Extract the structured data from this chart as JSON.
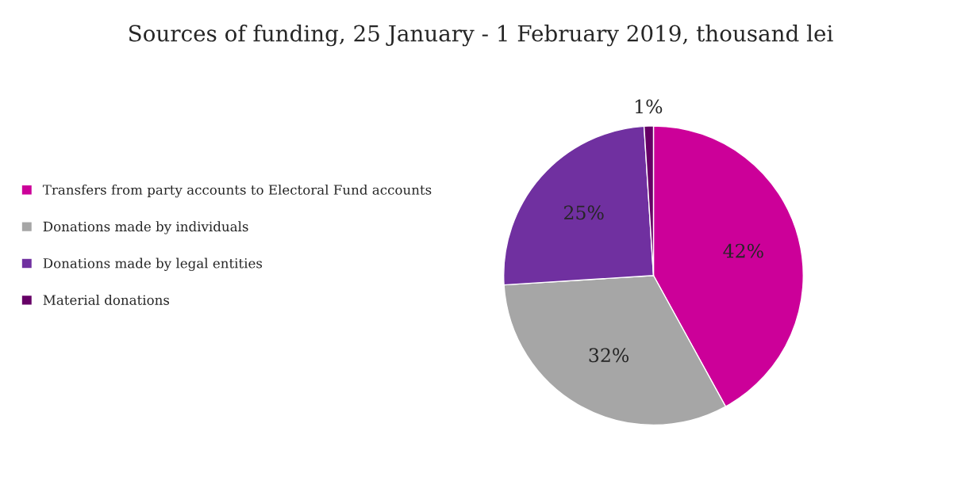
{
  "chart_data": {
    "type": "pie",
    "title": "Sources of funding, 25 January - 1 February 2019, thousand lei",
    "categories": [
      "Transfers from party accounts to Electoral Fund accounts",
      "Donations made by individuals",
      "Donations made by legal entities",
      "Material donations"
    ],
    "values": [
      42,
      32,
      25,
      1
    ],
    "colors": [
      "#cc0099",
      "#a6a6a6",
      "#7030a0",
      "#660066"
    ],
    "value_labels": [
      "42%",
      "32%",
      "25%",
      "1%"
    ],
    "legend": "left"
  }
}
